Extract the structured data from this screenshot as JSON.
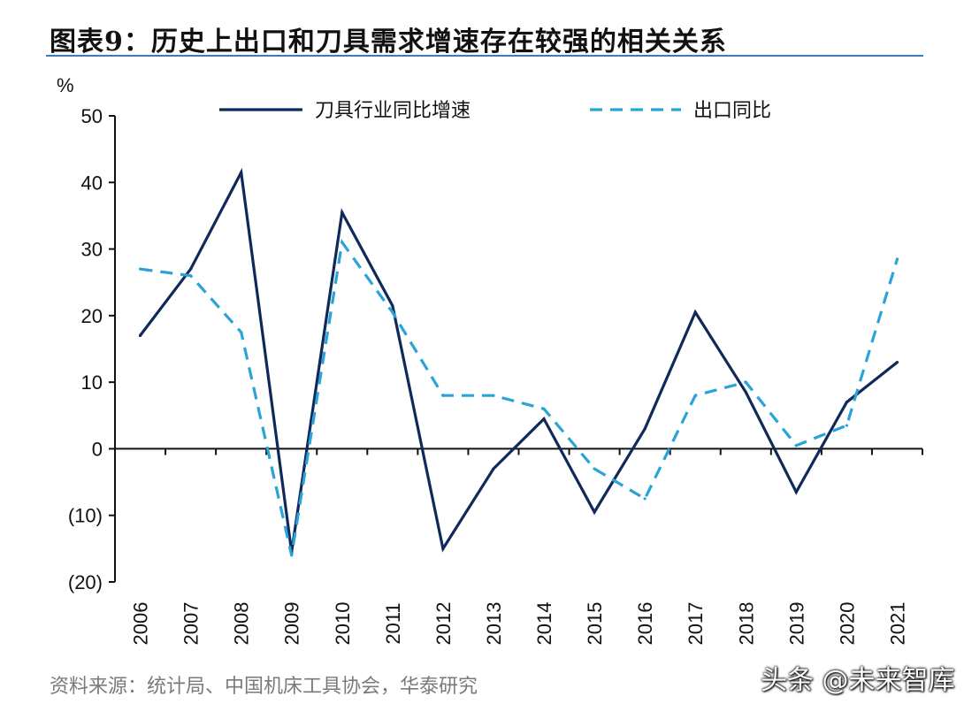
{
  "title": "图表9：历史上出口和刀具需求增速存在较强的相关关系",
  "source": "资料来源：统计局、中国机床工具协会，华泰研究",
  "watermark": "头条 @未来智库",
  "chart_data": {
    "type": "line",
    "ylabel": "%",
    "ylim": [
      -20,
      50
    ],
    "yticks": [
      50,
      40,
      30,
      20,
      10,
      0,
      -10,
      -20
    ],
    "ytick_labels": [
      "50",
      "40",
      "30",
      "20",
      "10",
      "0",
      "(10)",
      "(20)"
    ],
    "categories": [
      "2006",
      "2007",
      "2008",
      "2009",
      "2010",
      "2011",
      "2012",
      "2013",
      "2014",
      "2015",
      "2016",
      "2017",
      "2018",
      "2019",
      "2020",
      "2021"
    ],
    "legend_position": "top",
    "series": [
      {
        "name": "刀具行业同比增速",
        "color": "#0f2a5a",
        "style": "solid",
        "values": [
          17,
          27,
          41.5,
          -15.5,
          35.5,
          21.5,
          -15,
          -3,
          4.5,
          -9.5,
          3,
          20.5,
          8.5,
          -6.5,
          7,
          13
        ]
      },
      {
        "name": "出口同比",
        "color": "#2aa3d8",
        "style": "dashed",
        "values": [
          27,
          26,
          17.5,
          -16,
          31,
          20.5,
          8,
          8,
          6,
          -3,
          -7.5,
          8,
          10,
          0.5,
          3.5,
          28.5
        ]
      }
    ]
  }
}
